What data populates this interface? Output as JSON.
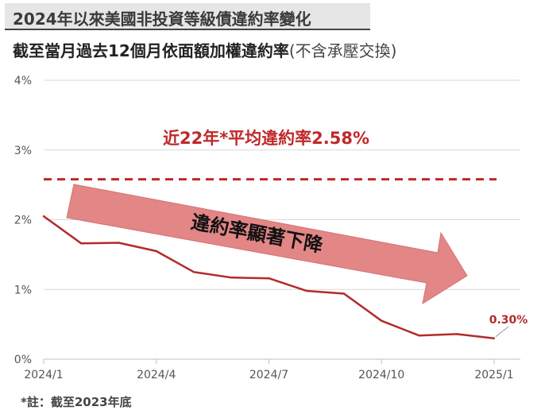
{
  "header": {
    "title": "2024年以來美國非投資等級債違約率變化",
    "subtitle_main": "截至當月過去12個月依面額加權違約率",
    "subtitle_paren": "(不含承壓交換)"
  },
  "footnote": "*註：截至2023年底",
  "colors": {
    "series": "#b22b2b",
    "average": "#c0282a",
    "arrow": "#e28686",
    "grid": "#d9d9d9"
  },
  "chart_data": {
    "type": "line",
    "x_ticks": [
      "2024/1",
      "2024/4",
      "2024/7",
      "2024/10",
      "2025/1"
    ],
    "y_ticks": [
      "0%",
      "1%",
      "2%",
      "3%",
      "4%"
    ],
    "ylim": [
      0,
      4
    ],
    "grid": "horizontal",
    "series": [
      {
        "x": [
          "2024/1",
          "2024/2",
          "2024/3",
          "2024/4",
          "2024/5",
          "2024/6",
          "2024/7",
          "2024/8",
          "2024/9",
          "2024/10",
          "2024/11",
          "2024/12",
          "2025/1"
        ],
        "values": [
          2.05,
          1.66,
          1.67,
          1.55,
          1.25,
          1.17,
          1.16,
          0.98,
          0.94,
          0.55,
          0.34,
          0.36,
          0.3
        ]
      }
    ],
    "reference_line": {
      "value": 2.58,
      "label": "近22年*平均違約率2.58%"
    },
    "arrow_annotation": "違約率顯著下降",
    "last_point_label": "0.30%"
  }
}
